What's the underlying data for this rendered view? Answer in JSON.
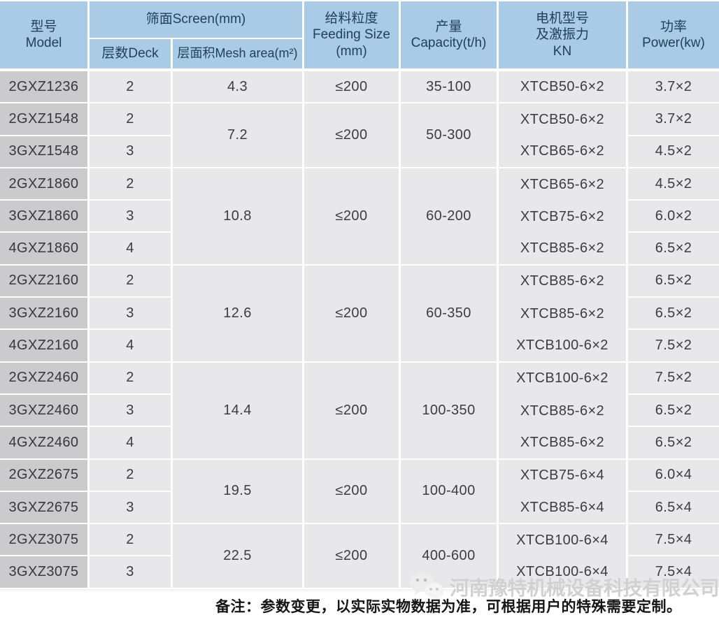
{
  "table": {
    "header": {
      "model": "型号\nModel",
      "screen_group": "筛面Screen(mm)",
      "deck": "层数Deck",
      "mesh_area": "层面积Mesh area(m²)",
      "feeding": "给料粒度\nFeeding Size\n(mm)",
      "capacity": "产量\nCapacity(t/h)",
      "motor": "电机型号\n及激振力\nKN",
      "power": "功率\nPower(kw)"
    },
    "groups": [
      {
        "mesh_area": "4.3",
        "feeding_size": "≤200",
        "capacity": "35-100",
        "rows": [
          {
            "model": "2GXZ1236",
            "deck": "2",
            "motor": "XTCB50-6×2",
            "power": "3.7×2"
          }
        ]
      },
      {
        "mesh_area": "7.2",
        "feeding_size": "≤200",
        "capacity": "50-300",
        "rows": [
          {
            "model": "2GXZ1548",
            "deck": "2",
            "motor": "XTCB50-6×2",
            "power": "3.7×2"
          },
          {
            "model": "3GXZ1548",
            "deck": "3",
            "motor": "XTCB65-6×2",
            "power": "4.5×2"
          }
        ]
      },
      {
        "mesh_area": "10.8",
        "feeding_size": "≤200",
        "capacity": "60-200",
        "rows": [
          {
            "model": "2GXZ1860",
            "deck": "2",
            "motor": "XTCB65-6×2",
            "power": "4.5×2"
          },
          {
            "model": "3GXZ1860",
            "deck": "3",
            "motor": "XTCB75-6×2",
            "power": "6.0×2"
          },
          {
            "model": "4GXZ1860",
            "deck": "4",
            "motor": "XTCB85-6×2",
            "power": "6.5×2"
          }
        ]
      },
      {
        "mesh_area": "12.6",
        "feeding_size": "≤200",
        "capacity": "60-350",
        "rows": [
          {
            "model": "2GXZ2160",
            "deck": "2",
            "motor": "XTCB85-6×2",
            "power": "6.5×2"
          },
          {
            "model": "3GXZ2160",
            "deck": "3",
            "motor": "XTCB85-6×2",
            "power": "6.5×2"
          },
          {
            "model": "4GXZ2160",
            "deck": "4",
            "motor": "XTCB100-6×2",
            "power": "7.5×2"
          }
        ]
      },
      {
        "mesh_area": "14.4",
        "feeding_size": "≤200",
        "capacity": "100-350",
        "rows": [
          {
            "model": "2GXZ2460",
            "deck": "2",
            "motor": "XTCB100-6×2",
            "power": "7.5×2"
          },
          {
            "model": "3GXZ2460",
            "deck": "3",
            "motor": "XTCB85-6×2",
            "power": "6.5×2"
          },
          {
            "model": "4GXZ2460",
            "deck": "4",
            "motor": "XTCB85-6×2",
            "power": "6.5×2"
          }
        ]
      },
      {
        "mesh_area": "19.5",
        "feeding_size": "≤200",
        "capacity": "100-400",
        "rows": [
          {
            "model": "2GXZ2675",
            "deck": "2",
            "motor": "XTCB75-6×4",
            "power": "6.0×4"
          },
          {
            "model": "3GXZ2675",
            "deck": "3",
            "motor": "XTCB85-6×4",
            "power": "6.5×4"
          }
        ]
      },
      {
        "mesh_area": "22.5",
        "feeding_size": "≤200",
        "capacity": "400-600",
        "rows": [
          {
            "model": "2GXZ3075",
            "deck": "2",
            "motor": "XTCB100-6×4",
            "power": "7.5×4"
          },
          {
            "model": "3GXZ3075",
            "deck": "3",
            "motor": "XTCB100-6×4",
            "power": "7.5×4"
          }
        ]
      }
    ]
  },
  "footer": {
    "note": "备注：参数变更，以实际实物数据为准，可根据用户的特殊需要定制。",
    "watermark": "河南豫特机械设备科技有限公司",
    "watermark_icon": "wechat-icon"
  },
  "colors": {
    "header_bg": "#a9cbe5",
    "header_text": "#20405e",
    "model_col_bg": "#cbcbcd",
    "cell_bg": "#e8e8ea",
    "cell_text": "#3d3d3f",
    "grid_line": "#ffffff",
    "watermark": "#c9c9c9"
  }
}
